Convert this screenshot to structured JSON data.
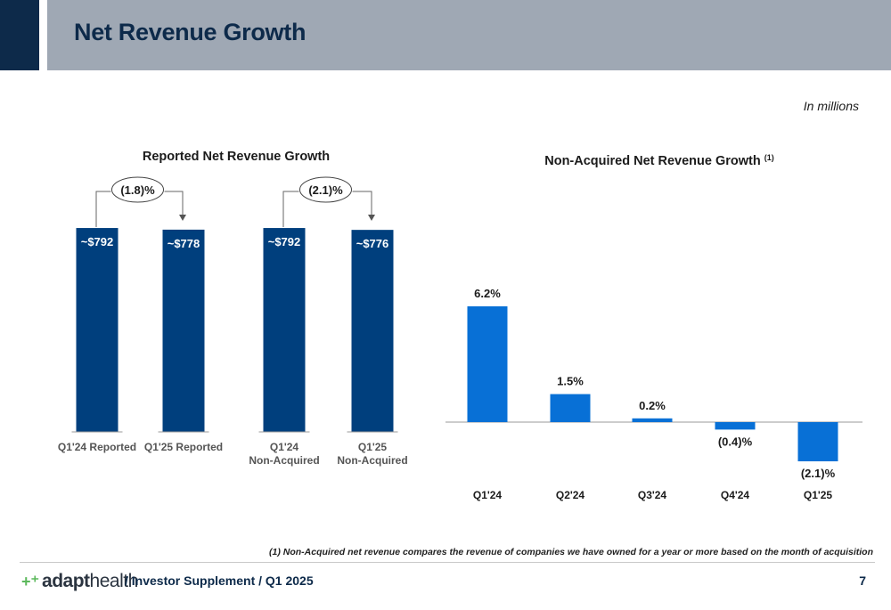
{
  "header": {
    "title": "Net Revenue Growth"
  },
  "units_note": "In millions",
  "colors": {
    "header_dark": "#0d2a4a",
    "header_gray": "#9fa8b4",
    "left_bar": "#003f7d",
    "right_bar": "#0870d6",
    "text": "#1b1b1b"
  },
  "chart_data": [
    {
      "type": "bar",
      "title": "Reported Net Revenue Growth",
      "categories": [
        "Q1'24 Reported",
        "Q1'25 Reported",
        "Q1'24 Non-Acquired",
        "Q1'25 Non-Acquired"
      ],
      "values": [
        792,
        778,
        792,
        776
      ],
      "data_labels": [
        "~$792",
        "~$778",
        "~$792",
        "~$776"
      ],
      "comparisons": [
        {
          "from": "Q1'24 Reported",
          "to": "Q1'25 Reported",
          "label": "(1.8)%"
        },
        {
          "from": "Q1'24 Non-Acquired",
          "to": "Q1'25 Non-Acquired",
          "label": "(2.1)%"
        }
      ],
      "ylim": [
        0,
        800
      ],
      "legend": "none",
      "grid": false
    },
    {
      "type": "bar",
      "title": "Non-Acquired Net Revenue Growth",
      "title_superscript": "(1)",
      "categories": [
        "Q1'24",
        "Q2'24",
        "Q3'24",
        "Q4'24",
        "Q1'25"
      ],
      "values": [
        6.2,
        1.5,
        0.2,
        -0.4,
        -2.1
      ],
      "data_labels": [
        "6.2%",
        "1.5%",
        "0.2%",
        "(0.4)%",
        "(2.1)%"
      ],
      "ylim": [
        -2.1,
        6.2
      ],
      "legend": "none",
      "grid": false
    }
  ],
  "footnote": "(1)   Non-Acquired net revenue compares the revenue of companies we have owned for a year or more based on the month of acquisition",
  "footer": {
    "logo_plus": "+⁺",
    "logo_word_a": "adapt",
    "logo_word_b": "health",
    "text": "/  Investor Supplement  /  Q1 2025",
    "page_number": "7"
  }
}
